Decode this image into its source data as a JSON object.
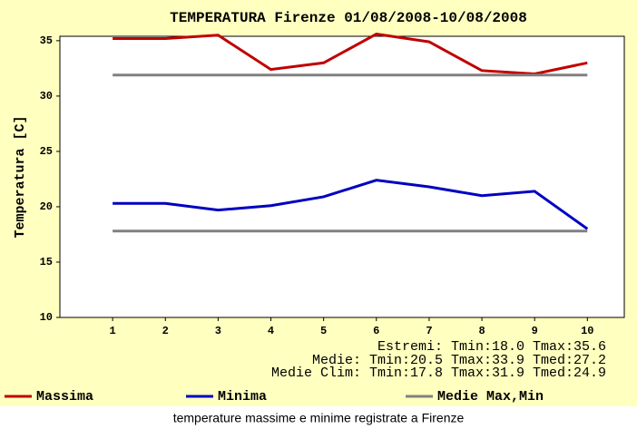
{
  "chart_data": {
    "type": "line",
    "title": "TEMPERATURA Firenze 01/08/2008-10/08/2008",
    "y_label": "Temperatura [C]",
    "x": [
      1,
      2,
      3,
      4,
      5,
      6,
      7,
      8,
      9,
      10
    ],
    "xlim": [
      0,
      10.7
    ],
    "xticks": [
      1,
      2,
      3,
      4,
      5,
      6,
      7,
      8,
      9,
      10
    ],
    "ylim": [
      10,
      35.4
    ],
    "yticks": [
      10,
      15,
      20,
      25,
      30,
      35
    ],
    "series": [
      {
        "name": "Massima",
        "color": "#c00000",
        "values": [
          35.2,
          35.2,
          35.5,
          32.4,
          33.0,
          35.6,
          34.9,
          32.3,
          32.0,
          33.0
        ]
      },
      {
        "name": "Minima",
        "color": "#0000c0",
        "values": [
          20.3,
          20.3,
          19.7,
          20.1,
          20.9,
          22.4,
          21.8,
          21.0,
          21.4,
          18.0
        ]
      },
      {
        "name": "Medie Max,Min",
        "color": "#808080",
        "values": [
          31.9,
          31.9,
          31.9,
          31.9,
          31.9,
          31.9,
          31.9,
          31.9,
          31.9,
          31.9
        ]
      },
      {
        "color": "#808080",
        "values": [
          17.8,
          17.8,
          17.8,
          17.8,
          17.8,
          17.8,
          17.8,
          17.8,
          17.8,
          17.8
        ]
      }
    ],
    "annotations": [
      "Estremi: Tmin:18.0 Tmax:35.6",
      "Medie: Tmin:20.5 Tmax:33.9 Tmed:27.2",
      "Medie Clim: Tmin:17.8 Tmax:31.9 Tmed:24.9"
    ],
    "caption": "temperature massime e minime registrate a Firenze"
  }
}
